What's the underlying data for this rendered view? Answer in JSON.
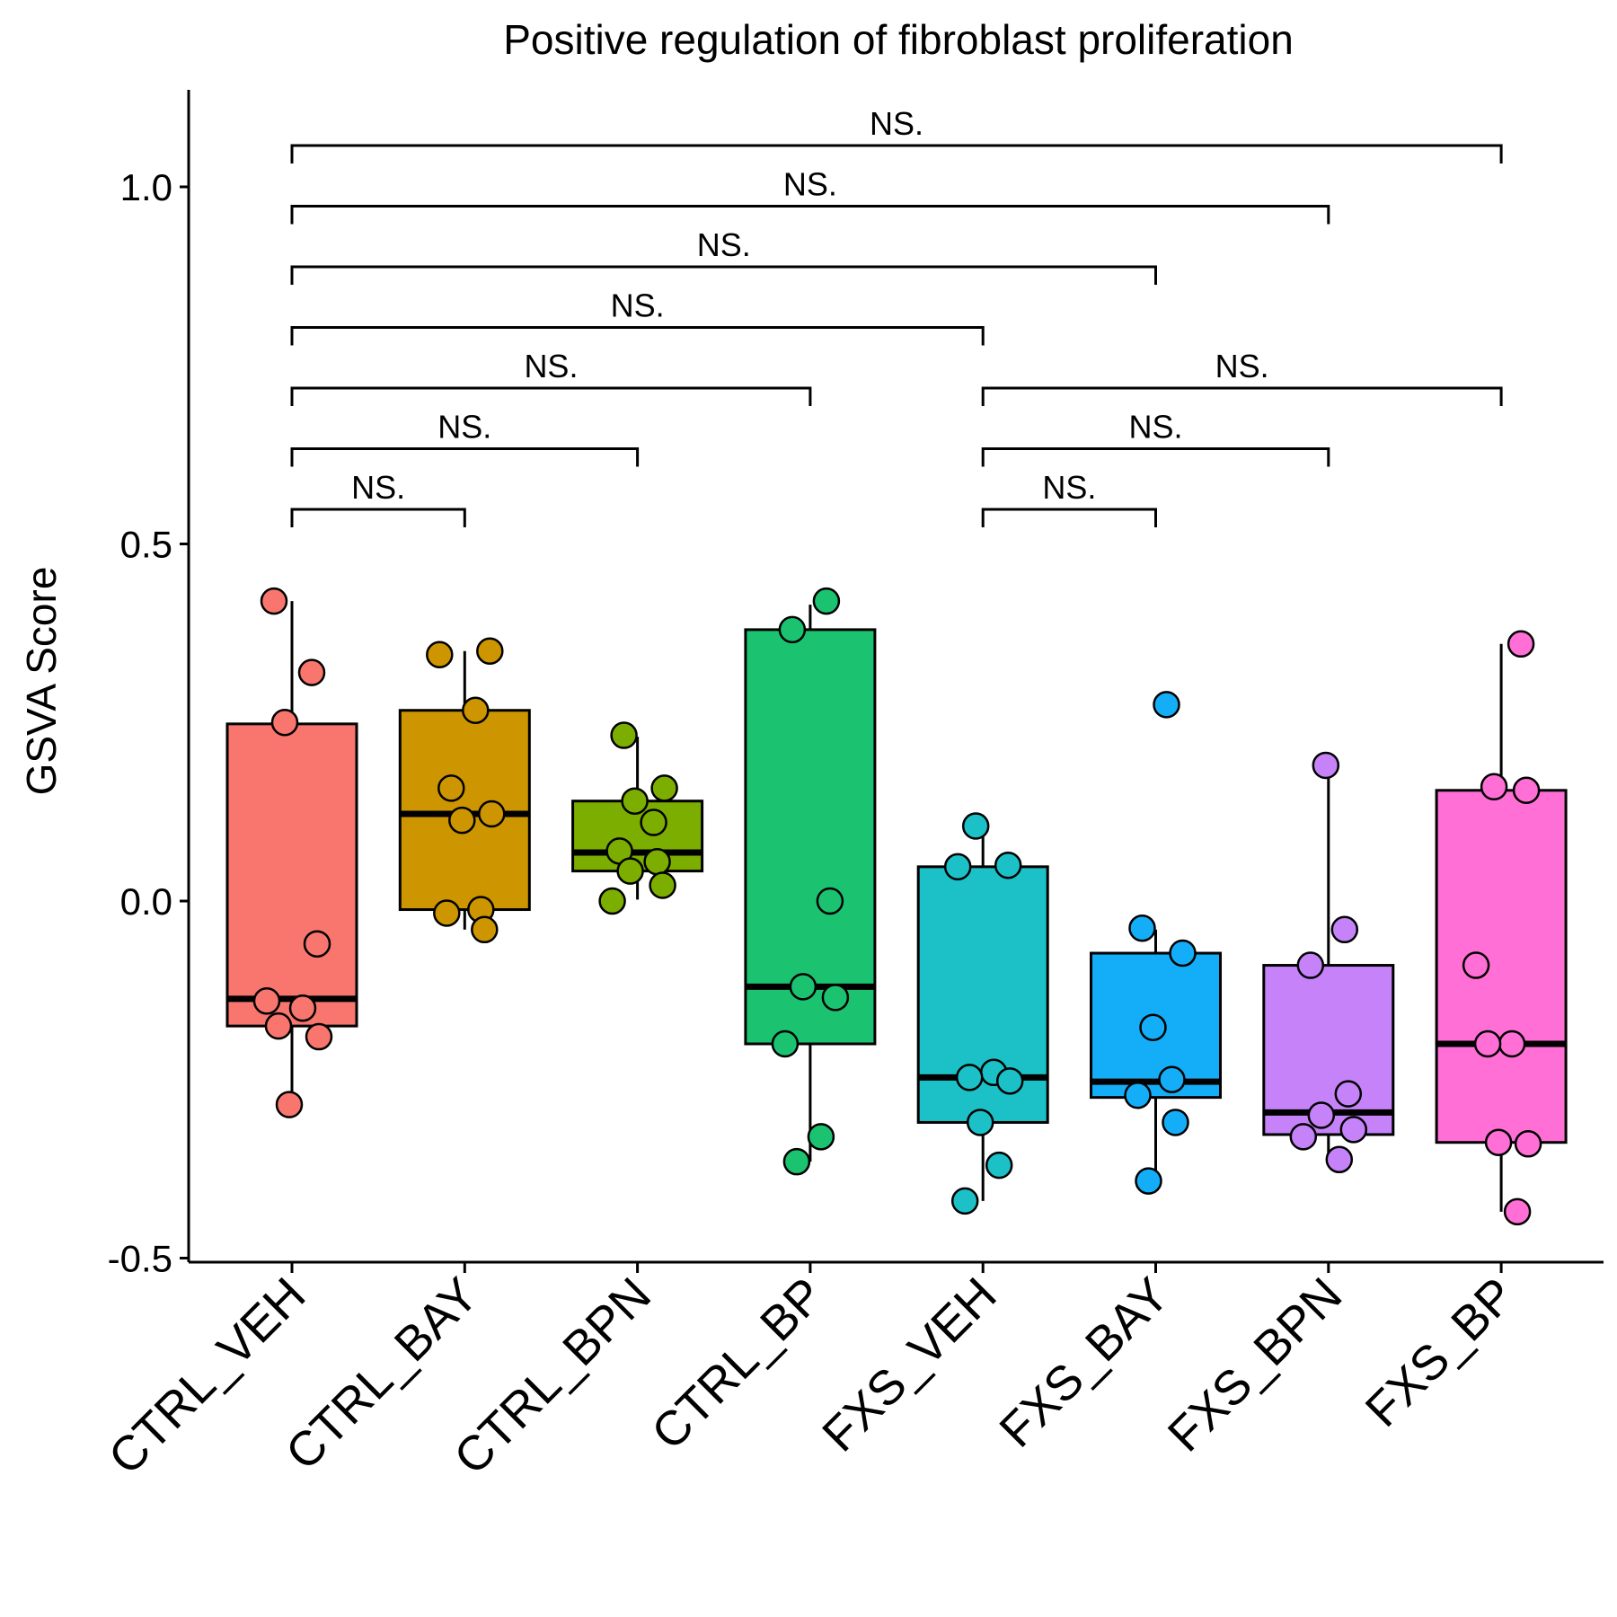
{
  "chart_data": {
    "type": "box",
    "title": "Positive regulation of fibroblast proliferation",
    "ylabel": "GSVA Score",
    "xlabel": "",
    "ylim": [
      -0.52,
      1.13
    ],
    "yticks": [
      "1.0",
      "0.5",
      "0.0",
      "-0.5"
    ],
    "ytick_values": [
      1.0,
      0.5,
      0.0,
      -0.5
    ],
    "grid": false,
    "legend": "none",
    "categories": [
      "CTRL_VEH",
      "CTRL_BAY",
      "CTRL_BPN",
      "CTRL_BP",
      "FXS_VEH",
      "FXS_BAY",
      "FXS_BPN",
      "FXS_BP"
    ],
    "series": [
      {
        "color": "#F8766D",
        "box": {
          "q1": -0.175,
          "median": -0.137,
          "q3": 0.248,
          "whisker_low": -0.28,
          "whisker_high": 0.42
        },
        "points": [
          0.42,
          0.32,
          0.25,
          -0.06,
          -0.14,
          -0.15,
          -0.175,
          -0.19,
          -0.285
        ]
      },
      {
        "color": "#CD9600",
        "box": {
          "q1": -0.012,
          "median": 0.122,
          "q3": 0.267,
          "whisker_low": -0.04,
          "whisker_high": 0.35
        },
        "points": [
          0.35,
          0.345,
          0.267,
          0.158,
          0.122,
          0.113,
          -0.012,
          -0.017,
          -0.04
        ]
      },
      {
        "color": "#7CAE00",
        "box": {
          "q1": 0.042,
          "median": 0.068,
          "q3": 0.14,
          "whisker_low": 0.002,
          "whisker_high": 0.23
        },
        "points": [
          0.232,
          0.158,
          0.14,
          0.11,
          0.07,
          0.055,
          0.042,
          0.022,
          0.0
        ]
      },
      {
        "color": "#1BC371",
        "box": {
          "q1": -0.2,
          "median": -0.12,
          "q3": 0.38,
          "whisker_low": -0.365,
          "whisker_high": 0.415
        },
        "points": [
          0.42,
          0.38,
          0.0,
          -0.12,
          -0.135,
          -0.2,
          -0.33,
          -0.365
        ]
      },
      {
        "color": "#1BC1C7",
        "box": {
          "q1": -0.31,
          "median": -0.247,
          "q3": 0.048,
          "whisker_low": -0.42,
          "whisker_high": 0.105
        },
        "points": [
          0.105,
          0.05,
          0.048,
          -0.24,
          -0.247,
          -0.252,
          -0.31,
          -0.37,
          -0.42
        ]
      },
      {
        "color": "#14AEF8",
        "box": {
          "q1": -0.275,
          "median": -0.253,
          "q3": -0.073,
          "whisker_low": -0.39,
          "whisker_high": -0.04
        },
        "points": [
          0.275,
          -0.038,
          -0.073,
          -0.177,
          -0.25,
          -0.272,
          -0.31,
          -0.392
        ]
      },
      {
        "color": "#C683F9",
        "box": {
          "q1": -0.327,
          "median": -0.296,
          "q3": -0.09,
          "whisker_low": -0.365,
          "whisker_high": 0.19
        },
        "points": [
          0.19,
          -0.04,
          -0.09,
          -0.27,
          -0.3,
          -0.32,
          -0.33,
          -0.362
        ]
      },
      {
        "color": "#FF6FD6",
        "box": {
          "q1": -0.338,
          "median": -0.2,
          "q3": 0.155,
          "whisker_low": -0.435,
          "whisker_high": 0.36
        },
        "points": [
          0.36,
          0.16,
          0.155,
          -0.09,
          -0.2,
          -0.2,
          -0.34,
          -0.338,
          -0.435
        ]
      }
    ],
    "comparisons": [
      {
        "from": 0,
        "to": 1,
        "label": "NS."
      },
      {
        "from": 0,
        "to": 2,
        "label": "NS."
      },
      {
        "from": 0,
        "to": 3,
        "label": "NS."
      },
      {
        "from": 0,
        "to": 4,
        "label": "NS."
      },
      {
        "from": 0,
        "to": 5,
        "label": "NS."
      },
      {
        "from": 0,
        "to": 6,
        "label": "NS."
      },
      {
        "from": 0,
        "to": 7,
        "label": "NS."
      },
      {
        "from": 4,
        "to": 5,
        "label": "NS."
      },
      {
        "from": 4,
        "to": 6,
        "label": "NS."
      },
      {
        "from": 4,
        "to": 7,
        "label": "NS."
      }
    ]
  }
}
